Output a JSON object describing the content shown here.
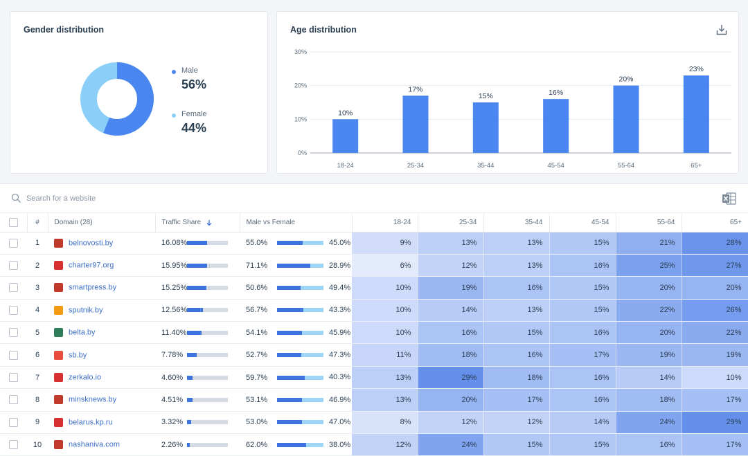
{
  "gender": {
    "title": "Gender distribution",
    "male_label": "Male",
    "male_pct": "56%",
    "female_label": "Female",
    "female_pct": "44%",
    "male_value": 56,
    "female_value": 44,
    "male_color": "#4a86f0",
    "female_color": "#8bcff9"
  },
  "age": {
    "title": "Age distribution",
    "download_icon": "download-icon"
  },
  "chart_data": {
    "type": "bar",
    "categories": [
      "18-24",
      "25-34",
      "35-44",
      "45-54",
      "55-64",
      "65+"
    ],
    "values": [
      10,
      17,
      15,
      16,
      20,
      23
    ],
    "value_labels": [
      "10%",
      "17%",
      "15%",
      "16%",
      "20%",
      "23%"
    ],
    "ylim": [
      0,
      30
    ],
    "yticks": [
      "0%",
      "10%",
      "20%",
      "30%"
    ],
    "grid": true,
    "color": "#4a86f0"
  },
  "search": {
    "placeholder": "Search for a website",
    "icon": "search-icon",
    "export_icon": "excel-icon"
  },
  "table": {
    "headers": {
      "rank": "#",
      "domain": "Domain (28)",
      "traffic": "Traffic Share",
      "mvf": "Male vs Female",
      "ages": [
        "18-24",
        "25-34",
        "35-44",
        "45-54",
        "55-64",
        "65+"
      ]
    },
    "rows": [
      {
        "rank": "1",
        "domain": "belnovosti.by",
        "share": "16.08%",
        "share_value": 16.08,
        "male": "55.0%",
        "male_value": 55.0,
        "female": "45.0%",
        "ages": [
          "9%",
          "13%",
          "13%",
          "15%",
          "21%",
          "28%"
        ],
        "favicon_color": "#c0392b"
      },
      {
        "rank": "2",
        "domain": "charter97.org",
        "share": "15.95%",
        "share_value": 15.95,
        "male": "71.1%",
        "male_value": 71.1,
        "female": "28.9%",
        "ages": [
          "6%",
          "12%",
          "13%",
          "16%",
          "25%",
          "27%"
        ],
        "favicon_color": "#d63031"
      },
      {
        "rank": "3",
        "domain": "smartpress.by",
        "share": "15.25%",
        "share_value": 15.25,
        "male": "50.6%",
        "male_value": 50.6,
        "female": "49.4%",
        "ages": [
          "10%",
          "19%",
          "16%",
          "15%",
          "20%",
          "20%"
        ],
        "favicon_color": "#c0392b"
      },
      {
        "rank": "4",
        "domain": "sputnik.by",
        "share": "12.56%",
        "share_value": 12.56,
        "male": "56.7%",
        "male_value": 56.7,
        "female": "43.3%",
        "ages": [
          "10%",
          "14%",
          "13%",
          "15%",
          "22%",
          "26%"
        ],
        "favicon_color": "#f39c12"
      },
      {
        "rank": "5",
        "domain": "belta.by",
        "share": "11.40%",
        "share_value": 11.4,
        "male": "54.1%",
        "male_value": 54.1,
        "female": "45.9%",
        "ages": [
          "10%",
          "16%",
          "15%",
          "16%",
          "20%",
          "22%"
        ],
        "favicon_color": "#2e7d5b"
      },
      {
        "rank": "6",
        "domain": "sb.by",
        "share": "7.78%",
        "share_value": 7.78,
        "male": "52.7%",
        "male_value": 52.7,
        "female": "47.3%",
        "ages": [
          "11%",
          "18%",
          "16%",
          "17%",
          "19%",
          "19%"
        ],
        "favicon_color": "#e74c3c"
      },
      {
        "rank": "7",
        "domain": "zerkalo.io",
        "share": "4.60%",
        "share_value": 4.6,
        "male": "59.7%",
        "male_value": 59.7,
        "female": "40.3%",
        "ages": [
          "13%",
          "29%",
          "18%",
          "16%",
          "14%",
          "10%"
        ],
        "favicon_color": "#d63031"
      },
      {
        "rank": "8",
        "domain": "minsknews.by",
        "share": "4.51%",
        "share_value": 4.51,
        "male": "53.1%",
        "male_value": 53.1,
        "female": "46.9%",
        "ages": [
          "13%",
          "20%",
          "17%",
          "16%",
          "18%",
          "17%"
        ],
        "favicon_color": "#c0392b"
      },
      {
        "rank": "9",
        "domain": "belarus.kp.ru",
        "share": "3.32%",
        "share_value": 3.32,
        "male": "53.0%",
        "male_value": 53.0,
        "female": "47.0%",
        "ages": [
          "8%",
          "12%",
          "12%",
          "14%",
          "24%",
          "29%"
        ],
        "favicon_color": "#d63031"
      },
      {
        "rank": "10",
        "domain": "nashaniva.com",
        "share": "2.26%",
        "share_value": 2.26,
        "male": "62.0%",
        "male_value": 62.0,
        "female": "38.0%",
        "ages": [
          "12%",
          "24%",
          "15%",
          "15%",
          "16%",
          "17%"
        ],
        "favicon_color": "#c0392b"
      }
    ]
  }
}
